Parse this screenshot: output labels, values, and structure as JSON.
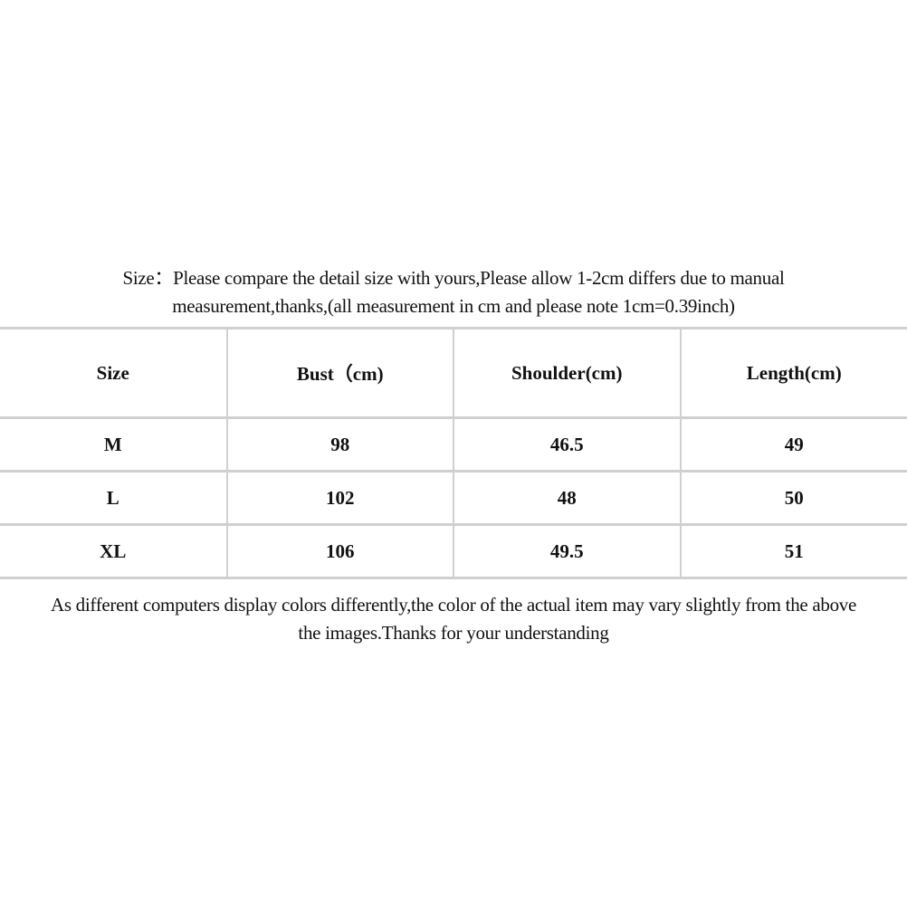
{
  "intro": {
    "line1": "Size：Please compare the detail size with yours,Please allow 1-2cm differs due to manual",
    "line2": "measurement,thanks,(all measurement in cm and please note 1cm=0.39inch)"
  },
  "table": {
    "headers": [
      "Size",
      "Bust（cm)",
      "Shoulder(cm)",
      "Length(cm)"
    ],
    "rows": [
      [
        "M",
        "98",
        "46.5",
        "49"
      ],
      [
        "L",
        "102",
        "48",
        "50"
      ],
      [
        "XL",
        "106",
        "49.5",
        "51"
      ]
    ]
  },
  "footer": {
    "line1": "As different computers display colors differently,the color of the actual item may vary slightly from the above",
    "line2": "the images.Thanks for your understanding"
  }
}
